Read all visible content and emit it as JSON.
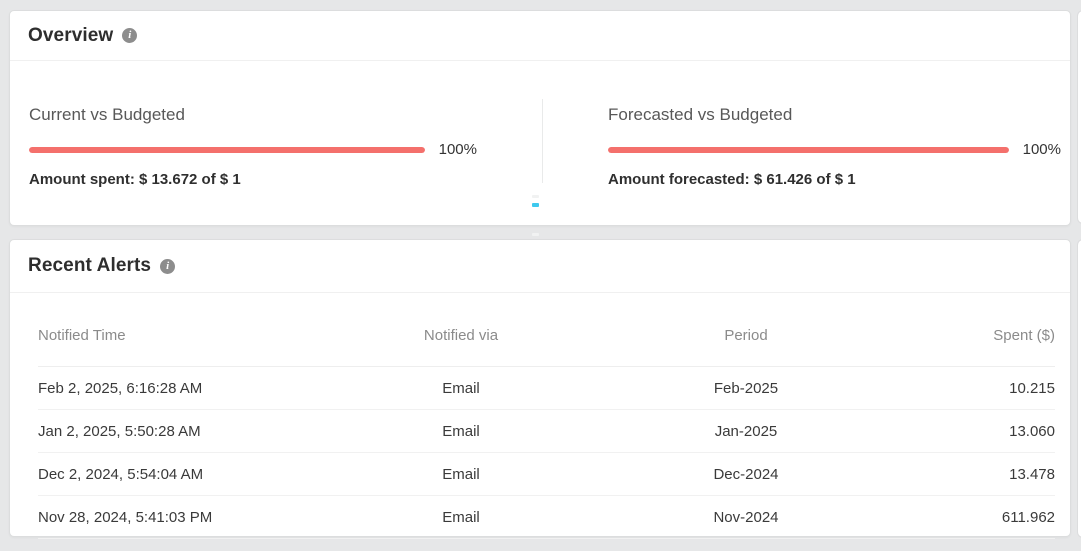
{
  "theme": {
    "page_bg": "#e6e7e8",
    "card_bg": "#ffffff",
    "progress_bar_color": "#f4706c",
    "cyan_marker_color": "#3ec9ee",
    "header_text_color": "#2e2e2e",
    "muted_text_color": "#8b8b8b"
  },
  "icons": {
    "info_glyph": "i"
  },
  "overview": {
    "title": "Overview",
    "sections": [
      {
        "label": "Current vs Budgeted",
        "percent_label": "100%",
        "percent_value": 100,
        "amount_text": "Amount spent: $ 13.672 of $ 1"
      },
      {
        "label": "Forecasted vs Budgeted",
        "percent_label": "100%",
        "percent_value": 100,
        "amount_text": "Amount forecasted: $ 61.426 of $ 1"
      }
    ]
  },
  "recent_alerts": {
    "title": "Recent Alerts",
    "columns": [
      "Notified Time",
      "Notified via",
      "Period",
      "Spent ($)"
    ],
    "rows": [
      [
        "Feb 2, 2025, 6:16:28 AM",
        "Email",
        "Feb-2025",
        "10.215"
      ],
      [
        "Jan 2, 2025, 5:50:28 AM",
        "Email",
        "Jan-2025",
        "13.060"
      ],
      [
        "Dec 2, 2024, 5:54:04 AM",
        "Email",
        "Dec-2024",
        "13.478"
      ],
      [
        "Nov 28, 2024, 5:41:03 PM",
        "Email",
        "Nov-2024",
        "611.962"
      ]
    ]
  }
}
